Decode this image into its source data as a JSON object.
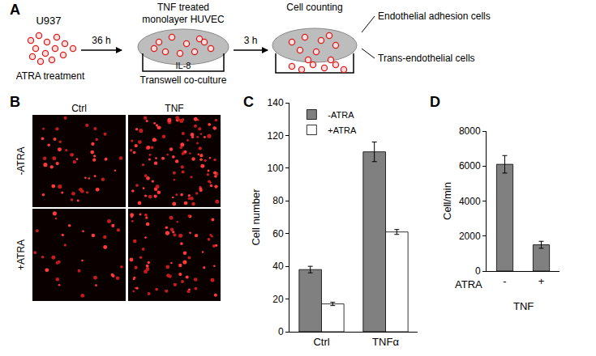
{
  "panel_labels": [
    "A",
    "B",
    "C",
    "D"
  ],
  "diagram": {
    "source": "U937",
    "treatment": "ATRA treatment",
    "step1_time": "36 h",
    "endothelium": [
      "TNF treated",
      "monolayer HUVEC"
    ],
    "chemoattractant": "IL-8",
    "assay": "Transwell co-culture",
    "step2_time": "3 h",
    "readout": "Cell counting",
    "outcomes": [
      "Endothelial adhesion cells",
      "Trans-endothelial cells"
    ]
  },
  "images": {
    "columns": [
      "Ctrl",
      "TNF"
    ],
    "rows": [
      "-ATRA",
      "+ATRA"
    ]
  },
  "chart_data": [
    {
      "type": "bar",
      "categories": [
        "Ctrl",
        "TNFα"
      ],
      "series": [
        {
          "name": "-ATRA",
          "color": "#808080",
          "values": [
            38,
            110
          ],
          "error": [
            2,
            6
          ]
        },
        {
          "name": "+ATRA",
          "color": "#ffffff",
          "values": [
            17,
            61
          ],
          "error": [
            1,
            1.5
          ]
        }
      ],
      "ylabel": "Cell number",
      "ylim": [
        0,
        140
      ],
      "yticks": [
        0,
        20,
        40,
        60,
        80,
        100,
        120,
        140
      ],
      "grid": false,
      "legend": "upper left"
    },
    {
      "type": "bar",
      "categories": [
        "-",
        "+"
      ],
      "values": [
        6100,
        1500
      ],
      "error": [
        500,
        200
      ],
      "color": "#808080",
      "ylabel": "Cell/min",
      "ylim": [
        0,
        8000
      ],
      "yticks": [
        0,
        2000,
        4000,
        6000,
        8000
      ],
      "annotations": [
        "ATRA",
        "TNF"
      ],
      "grid": false
    }
  ]
}
